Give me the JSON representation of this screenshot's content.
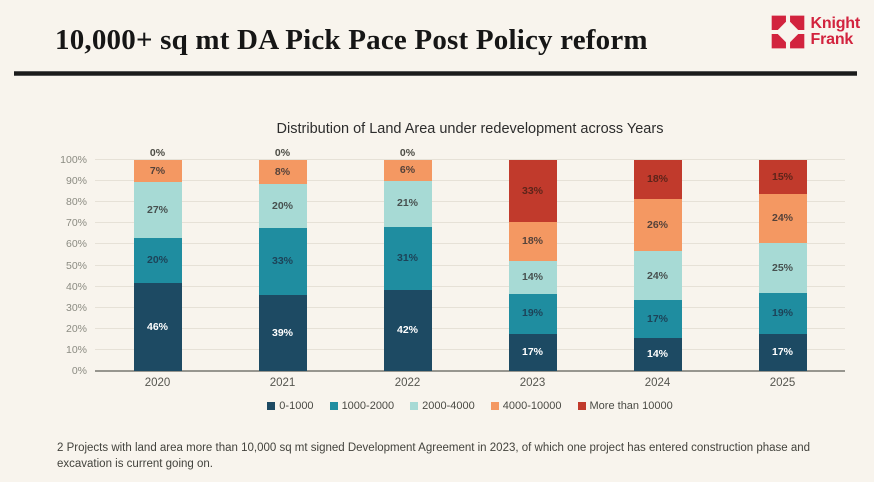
{
  "header": {
    "title": "10,000+ sq mt DA Pick Pace Post Policy reform",
    "logo": {
      "line1": "Knight",
      "line2": "Frank",
      "color": "#d2233e"
    }
  },
  "chart_data": {
    "type": "bar",
    "stacked": true,
    "title": "Distribution of Land Area under redevelopment across Years",
    "categories": [
      "2020",
      "2021",
      "2022",
      "2023",
      "2024",
      "2025"
    ],
    "series": [
      {
        "name": "0-1000",
        "color": "#1d4a63",
        "label_color": "#ffffff",
        "values": [
          46,
          39,
          42,
          17,
          14,
          17
        ]
      },
      {
        "name": "1000-2000",
        "color": "#1f8da0",
        "label_color": "#1d4358",
        "values": [
          20,
          33,
          31,
          19,
          17,
          19
        ]
      },
      {
        "name": "2000-4000",
        "color": "#a7dad5",
        "label_color": "#47504f",
        "values": [
          27,
          20,
          21,
          14,
          24,
          25
        ]
      },
      {
        "name": "4000-10000",
        "color": "#f49862",
        "label_color": "#54423a",
        "values": [
          7,
          8,
          6,
          18,
          26,
          24
        ]
      },
      {
        "name": "More than 10000",
        "color": "#c13a2c",
        "label_color": "#5d241a",
        "values": [
          0,
          0,
          0,
          33,
          18,
          15
        ]
      }
    ],
    "value_label_suffix": "%",
    "y_ticks": [
      "100%",
      "90%",
      "80%",
      "70%",
      "60%",
      "50%",
      "40%",
      "30%",
      "20%",
      "10%",
      "0%"
    ],
    "ylim": [
      0,
      100
    ],
    "grid": true,
    "legend_position": "bottom"
  },
  "footnote": "2 Projects with land area more than 10,000 sq mt signed Development Agreement in 2023, of which one project has entered construction phase and excavation is current going on."
}
